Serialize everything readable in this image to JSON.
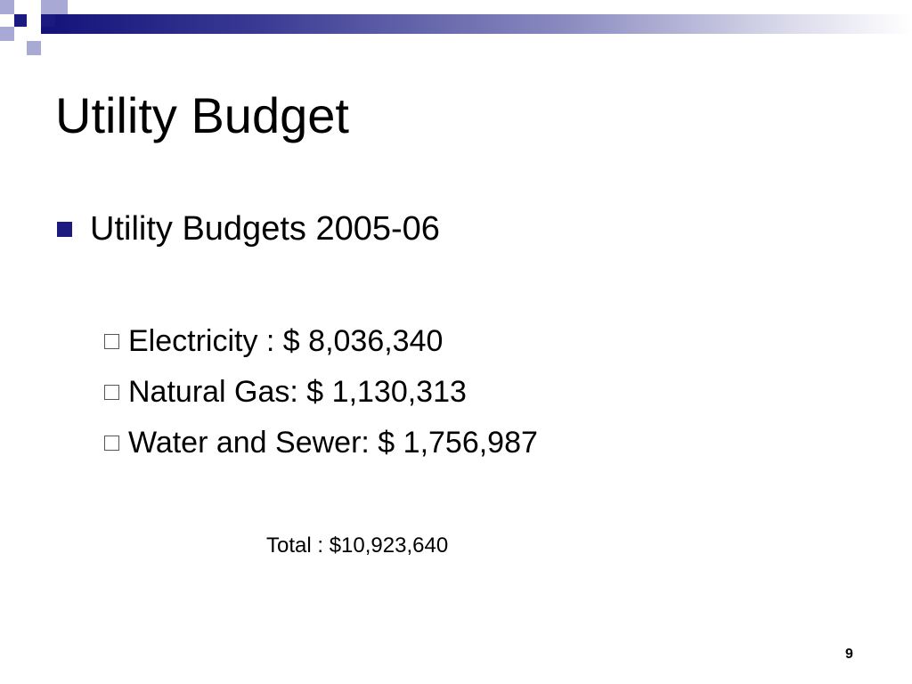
{
  "slide": {
    "title": "Utility Budget",
    "main_bullet": "Utility Budgets 2005-06",
    "sub_bullets": [
      "Electricity : $ 8,036,340",
      "Natural Gas: $ 1,130,313",
      "Water and Sewer:  $ 1,756,987"
    ],
    "total": "Total : $10,923,640",
    "page_number": "9"
  },
  "colors": {
    "accent_navy": "#1a1a80",
    "accent_light": "#a9a9d6"
  }
}
